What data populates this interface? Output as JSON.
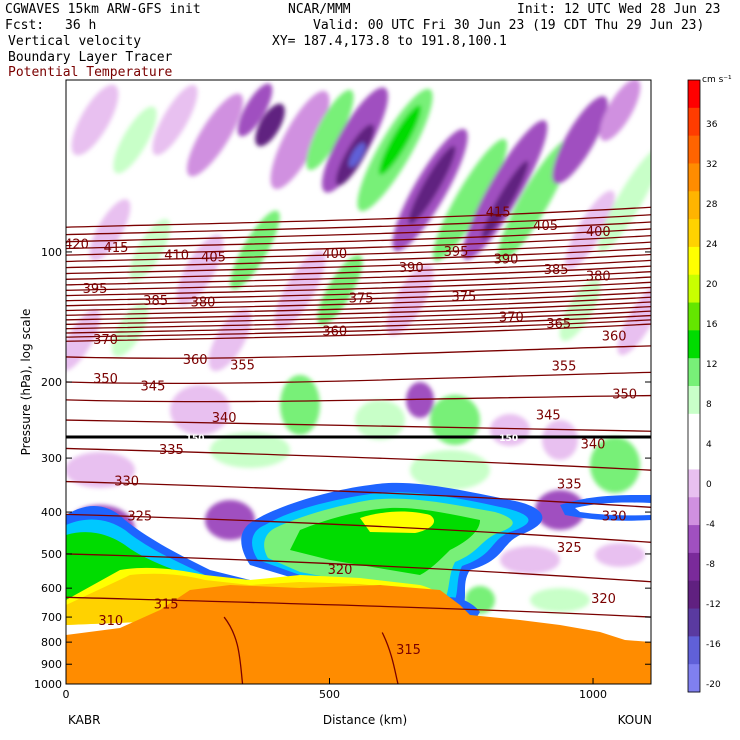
{
  "header": {
    "model": "CGWAVES 15km ARW-GFS init",
    "org": "NCAR/MMM",
    "init": "Init: 12 UTC Wed 28 Jun 23",
    "fcst_label": "Fcst:",
    "fcst_value": "36 h",
    "valid": "Valid: 00 UTC Fri 30 Jun 23 (19 CDT Thu 29 Jun 23)",
    "xy": "XY= 187.4,173.8 to 191.8,100.1",
    "field1": "Vertical velocity",
    "field2": "Boundary Layer Tracer",
    "field3": "Potential Temperature"
  },
  "colors": {
    "theta_line": "#7a0000",
    "field3_text": "#7a0000",
    "ground": "#ff8c00"
  },
  "chart_data": {
    "type": "heatmap",
    "xlabel": "Distance (km)",
    "ylabel": "Pressure (hPa), log scale",
    "x_ticks": [
      "0",
      "500",
      "1000"
    ],
    "x_end_labels": {
      "left": "KABR",
      "right": "KOUN"
    },
    "y_ticks": [
      "100",
      "200",
      "300",
      "400",
      "500",
      "600",
      "700",
      "800",
      "900",
      "1000"
    ],
    "y_scale": "log",
    "xlim": [
      0,
      1110
    ],
    "ylim": [
      1000,
      40
    ],
    "colorbar": {
      "unit": "cm s⁻¹",
      "labels": [
        "36",
        "32",
        "28",
        "24",
        "20",
        "16",
        "12",
        "8",
        "4",
        "0",
        "-4",
        "-8",
        "-12",
        "-16",
        "-20"
      ],
      "colors": [
        "#ff0000",
        "#ff3c00",
        "#ff6400",
        "#ff8c00",
        "#ffb400",
        "#ffd200",
        "#ffff00",
        "#c8ff00",
        "#64e600",
        "#00dc00",
        "#78f078",
        "#c8ffc8",
        "#ffffff",
        "#ffffff",
        "#e8c0f0",
        "#d090e0",
        "#a050c0",
        "#7a2a9a",
        "#602080",
        "#5a3aa0",
        "#6060d8",
        "#8080f0"
      ]
    },
    "theta_contour_labels": [
      {
        "value": "420",
        "x": 20,
        "p": 96
      },
      {
        "value": "415",
        "x": 95,
        "p": 98
      },
      {
        "value": "410",
        "x": 210,
        "p": 102
      },
      {
        "value": "405",
        "x": 280,
        "p": 103
      },
      {
        "value": "400",
        "x": 510,
        "p": 101
      },
      {
        "value": "395",
        "x": 740,
        "p": 100
      },
      {
        "value": "415",
        "x": 820,
        "p": 81
      },
      {
        "value": "405",
        "x": 910,
        "p": 87
      },
      {
        "value": "400",
        "x": 1010,
        "p": 90
      },
      {
        "value": "390",
        "x": 655,
        "p": 109
      },
      {
        "value": "390",
        "x": 835,
        "p": 104
      },
      {
        "value": "385",
        "x": 930,
        "p": 110
      },
      {
        "value": "380",
        "x": 1010,
        "p": 114
      },
      {
        "value": "395",
        "x": 55,
        "p": 122
      },
      {
        "value": "385",
        "x": 170,
        "p": 130
      },
      {
        "value": "380",
        "x": 260,
        "p": 131
      },
      {
        "value": "375",
        "x": 560,
        "p": 128
      },
      {
        "value": "375",
        "x": 755,
        "p": 127
      },
      {
        "value": "370",
        "x": 845,
        "p": 142
      },
      {
        "value": "365",
        "x": 935,
        "p": 147
      },
      {
        "value": "370",
        "x": 75,
        "p": 160
      },
      {
        "value": "360",
        "x": 510,
        "p": 153
      },
      {
        "value": "360",
        "x": 1040,
        "p": 157
      },
      {
        "value": "360",
        "x": 245,
        "p": 178
      },
      {
        "value": "355",
        "x": 335,
        "p": 183
      },
      {
        "value": "355",
        "x": 945,
        "p": 184
      },
      {
        "value": "350",
        "x": 75,
        "p": 197
      },
      {
        "value": "345",
        "x": 165,
        "p": 205
      },
      {
        "value": "350",
        "x": 1060,
        "p": 214
      },
      {
        "value": "345",
        "x": 915,
        "p": 239
      },
      {
        "value": "340",
        "x": 300,
        "p": 242
      },
      {
        "value": "340",
        "x": 1000,
        "p": 279
      },
      {
        "value": "335",
        "x": 200,
        "p": 287
      },
      {
        "value": "335",
        "x": 955,
        "p": 345
      },
      {
        "value": "330",
        "x": 115,
        "p": 340
      },
      {
        "value": "330",
        "x": 1040,
        "p": 410
      },
      {
        "value": "325",
        "x": 140,
        "p": 410
      },
      {
        "value": "325",
        "x": 955,
        "p": 485
      },
      {
        "value": "320",
        "x": 520,
        "p": 545
      },
      {
        "value": "320",
        "x": 1020,
        "p": 635
      },
      {
        "value": "315",
        "x": 190,
        "p": 655
      },
      {
        "value": "310",
        "x": 85,
        "p": 715
      },
      {
        "value": "315",
        "x": 650,
        "p": 835
      }
    ],
    "tropopause_label": [
      {
        "value": "150",
        "x": 245
      },
      {
        "value": "150",
        "x": 840
      }
    ]
  }
}
